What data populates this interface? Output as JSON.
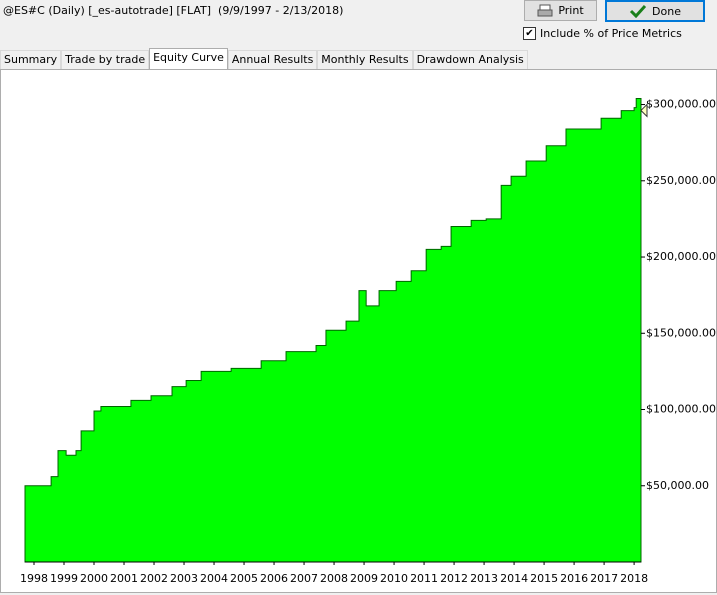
{
  "header": {
    "title": "@ES#C (Daily) [_es-autotrade] [FLAT]  (9/9/1997 - 2/13/2018)"
  },
  "buttons": {
    "print": "Print",
    "done": "Done"
  },
  "checkbox": {
    "label": "Include % of Price Metrics",
    "checked": true
  },
  "tabs": [
    "Summary",
    "Trade by trade",
    "Equity Curve",
    "Annual Results",
    "Monthly Results",
    "Drawdown Analysis"
  ],
  "active_tab": 2,
  "chart_data": {
    "type": "area",
    "color": "#00ff00",
    "x": [
      1997.7,
      1998.33,
      1998.57,
      1998.8,
      1999.07,
      1999.4,
      1999.57,
      2000,
      2000.23,
      2001.23,
      2001.9,
      2002.6,
      2003.07,
      2003.57,
      2004.57,
      2005.57,
      2006.4,
      2007.4,
      2007.73,
      2008.4,
      2008.83,
      2009.07,
      2009.5,
      2010.07,
      2010.57,
      2011.07,
      2011.57,
      2011.9,
      2012.57,
      2013.07,
      2013.57,
      2013.9,
      2014.4,
      2015.07,
      2015.73,
      2016.23,
      2016.9,
      2017.57,
      2018.0,
      2018.07,
      2018.23
    ],
    "values": [
      50000,
      50000,
      56000,
      73000,
      70000,
      73000,
      86000,
      99000,
      102000,
      106000,
      109000,
      115000,
      119000,
      125000,
      127000,
      132000,
      138000,
      142000,
      152000,
      158000,
      178000,
      168000,
      178000,
      184000,
      191000,
      205000,
      207000,
      220000,
      224000,
      225000,
      247000,
      253000,
      263000,
      273000,
      284000,
      284000,
      291000,
      296000,
      298000,
      304000,
      304000
    ],
    "xlim": [
      1997.7,
      2018.23
    ],
    "xticks": [
      1998,
      1999,
      2000,
      2001,
      2002,
      2003,
      2004,
      2005,
      2006,
      2007,
      2008,
      2009,
      2010,
      2011,
      2012,
      2013,
      2014,
      2015,
      2016,
      2017,
      2018
    ],
    "ylim": [
      0,
      322000
    ],
    "yticks": [
      {
        "value": 50000,
        "label": "$50,000.00"
      },
      {
        "value": 100000,
        "label": "$100,000.00"
      },
      {
        "value": 150000,
        "label": "$150,000.00"
      },
      {
        "value": 200000,
        "label": "$200,000.00"
      },
      {
        "value": 250000,
        "label": "$250,000.00"
      },
      {
        "value": 300000,
        "label": "$300,000.00"
      }
    ]
  }
}
